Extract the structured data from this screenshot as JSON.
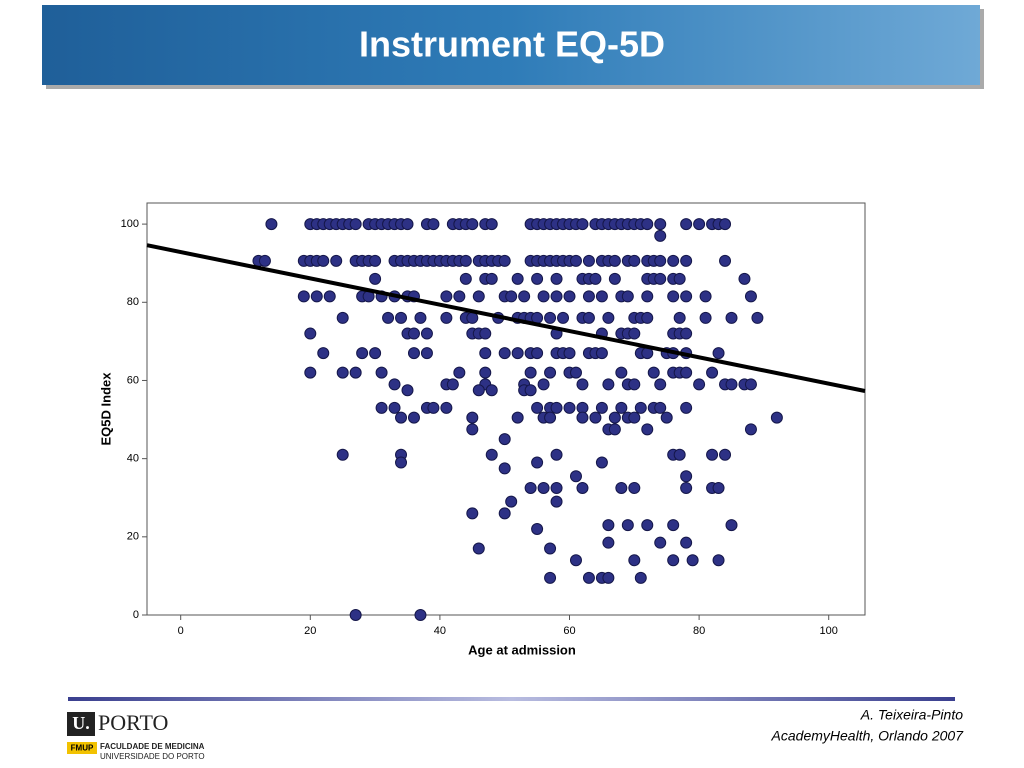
{
  "header": {
    "title": "Instrument EQ-5D"
  },
  "chart_data": {
    "type": "scatter",
    "x_label": "Age at admission",
    "y_label": "EQ5D Index",
    "color": "#2d3185",
    "xlim": [
      -5.2,
      105.6
    ],
    "ylim": [
      0,
      105.4
    ],
    "xticks": [
      0,
      20,
      40,
      60,
      80,
      100
    ],
    "yticks": [
      0,
      20,
      40,
      60,
      80,
      100
    ],
    "x": [
      14,
      20,
      21,
      22,
      23,
      24,
      25,
      26,
      27,
      29,
      30,
      31,
      32,
      33,
      34,
      35,
      38,
      39,
      42,
      43,
      44,
      45,
      47,
      48,
      54,
      55,
      56,
      57,
      58,
      59,
      60,
      61,
      62,
      64,
      65,
      66,
      67,
      68,
      69,
      70,
      71,
      72,
      74,
      78,
      80,
      82,
      83,
      84,
      74,
      12,
      13,
      19,
      20,
      21,
      22,
      24,
      27,
      28,
      29,
      30,
      33,
      34,
      35,
      36,
      37,
      38,
      39,
      40,
      41,
      42,
      43,
      44,
      46,
      47,
      48,
      49,
      50,
      54,
      55,
      56,
      57,
      58,
      59,
      60,
      61,
      63,
      65,
      66,
      67,
      69,
      70,
      72,
      73,
      74,
      76,
      78,
      84,
      30,
      44,
      47,
      48,
      52,
      55,
      58,
      62,
      63,
      64,
      67,
      72,
      73,
      74,
      76,
      77,
      87,
      19,
      21,
      23,
      28,
      29,
      31,
      33,
      35,
      36,
      41,
      43,
      46,
      50,
      51,
      53,
      56,
      58,
      60,
      63,
      65,
      68,
      69,
      72,
      76,
      78,
      81,
      88,
      25,
      32,
      34,
      37,
      41,
      44,
      45,
      49,
      52,
      53,
      54,
      55,
      57,
      59,
      62,
      63,
      66,
      70,
      71,
      72,
      77,
      81,
      85,
      89,
      20,
      35,
      36,
      38,
      45,
      46,
      47,
      58,
      65,
      68,
      69,
      70,
      76,
      77,
      78,
      22,
      28,
      30,
      36,
      38,
      47,
      50,
      52,
      54,
      55,
      58,
      59,
      60,
      63,
      64,
      65,
      71,
      72,
      75,
      76,
      78,
      83,
      20,
      25,
      27,
      31,
      43,
      47,
      54,
      57,
      60,
      61,
      68,
      73,
      76,
      77,
      78,
      82,
      33,
      41,
      42,
      47,
      53,
      56,
      62,
      66,
      69,
      70,
      74,
      80,
      84,
      85,
      87,
      88,
      35,
      46,
      48,
      53,
      54,
      31,
      33,
      38,
      39,
      41,
      55,
      57,
      58,
      60,
      62,
      65,
      68,
      71,
      73,
      74,
      78,
      34,
      36,
      45,
      52,
      56,
      57,
      62,
      64,
      67,
      69,
      70,
      75,
      92,
      45,
      66,
      67,
      72,
      88,
      50,
      25,
      34,
      48,
      58,
      76,
      77,
      82,
      84,
      34,
      55,
      65,
      50,
      61,
      78,
      54,
      56,
      58,
      62,
      68,
      70,
      78,
      82,
      83,
      51,
      58,
      45,
      50,
      66,
      69,
      72,
      76,
      85,
      55,
      66,
      74,
      78,
      46,
      57,
      61,
      70,
      76,
      79,
      83,
      57,
      63,
      65,
      66,
      71,
      27,
      37
    ],
    "values": [
      100,
      100,
      100,
      100,
      100,
      100,
      100,
      100,
      100,
      100,
      100,
      100,
      100,
      100,
      100,
      100,
      100,
      100,
      100,
      100,
      100,
      100,
      100,
      100,
      100,
      100,
      100,
      100,
      100,
      100,
      100,
      100,
      100,
      100,
      100,
      100,
      100,
      100,
      100,
      100,
      100,
      100,
      100,
      100,
      100,
      100,
      100,
      100,
      97,
      90.6,
      90.6,
      90.6,
      90.6,
      90.6,
      90.6,
      90.6,
      90.6,
      90.6,
      90.6,
      90.6,
      90.6,
      90.6,
      90.6,
      90.6,
      90.6,
      90.6,
      90.6,
      90.6,
      90.6,
      90.6,
      90.6,
      90.6,
      90.6,
      90.6,
      90.6,
      90.6,
      90.6,
      90.6,
      90.6,
      90.6,
      90.6,
      90.6,
      90.6,
      90.6,
      90.6,
      90.6,
      90.6,
      90.6,
      90.6,
      90.6,
      90.6,
      90.6,
      90.6,
      90.6,
      90.6,
      90.6,
      90.6,
      86,
      86,
      86,
      86,
      86,
      86,
      86,
      86,
      86,
      86,
      86,
      86,
      86,
      86,
      86,
      86,
      86,
      81.5,
      81.5,
      81.5,
      81.5,
      81.5,
      81.5,
      81.5,
      81.5,
      81.5,
      81.5,
      81.5,
      81.5,
      81.5,
      81.5,
      81.5,
      81.5,
      81.5,
      81.5,
      81.5,
      81.5,
      81.5,
      81.5,
      81.5,
      81.5,
      81.5,
      81.5,
      81.5,
      76,
      76,
      76,
      76,
      76,
      76,
      76,
      76,
      76,
      76,
      76,
      76,
      76,
      76,
      76,
      76,
      76,
      76,
      76,
      76,
      76,
      76,
      76,
      76,
      72,
      72,
      72,
      72,
      72,
      72,
      72,
      72,
      72,
      72,
      72,
      72,
      72,
      72,
      72,
      67,
      67,
      67,
      67,
      67,
      67,
      67,
      67,
      67,
      67,
      67,
      67,
      67,
      67,
      67,
      67,
      67,
      67,
      67,
      67,
      67,
      67,
      62,
      62,
      62,
      62,
      62,
      62,
      62,
      62,
      62,
      62,
      62,
      62,
      62,
      62,
      62,
      62,
      59,
      59,
      59,
      59,
      59,
      59,
      59,
      59,
      59,
      59,
      59,
      59,
      59,
      59,
      59,
      59,
      57.5,
      57.5,
      57.5,
      57.5,
      57.5,
      53,
      53,
      53,
      53,
      53,
      53,
      53,
      53,
      53,
      53,
      53,
      53,
      53,
      53,
      53,
      53,
      50.5,
      50.5,
      50.5,
      50.5,
      50.5,
      50.5,
      50.5,
      50.5,
      50.5,
      50.5,
      50.5,
      50.5,
      50.5,
      47.5,
      47.5,
      47.5,
      47.5,
      47.5,
      45,
      41,
      41,
      41,
      41,
      41,
      41,
      41,
      41,
      39,
      39,
      39,
      37.5,
      35.5,
      35.5,
      32.5,
      32.5,
      32.5,
      32.5,
      32.5,
      32.5,
      32.5,
      32.5,
      32.5,
      29,
      29,
      26,
      26,
      23,
      23,
      23,
      23,
      23,
      22,
      18.5,
      18.5,
      18.5,
      17,
      17,
      14,
      14,
      14,
      14,
      14,
      9.5,
      9.5,
      9.5,
      9.5,
      9.5,
      0,
      0
    ],
    "fit_line": {
      "x": [
        -5.2,
        105.6
      ],
      "values": [
        94.6,
        57.3
      ],
      "color": "#000000"
    }
  },
  "footer": {
    "author": "A. Teixeira-Pinto",
    "event": "AcademyHealth, Orlando 2007"
  },
  "logo": {
    "mark": "U.",
    "name": "PORTO",
    "badge": "FMUP",
    "line1": "FACULDADE DE MEDICINA",
    "line2": "UNIVERSIDADE DO PORTO"
  }
}
